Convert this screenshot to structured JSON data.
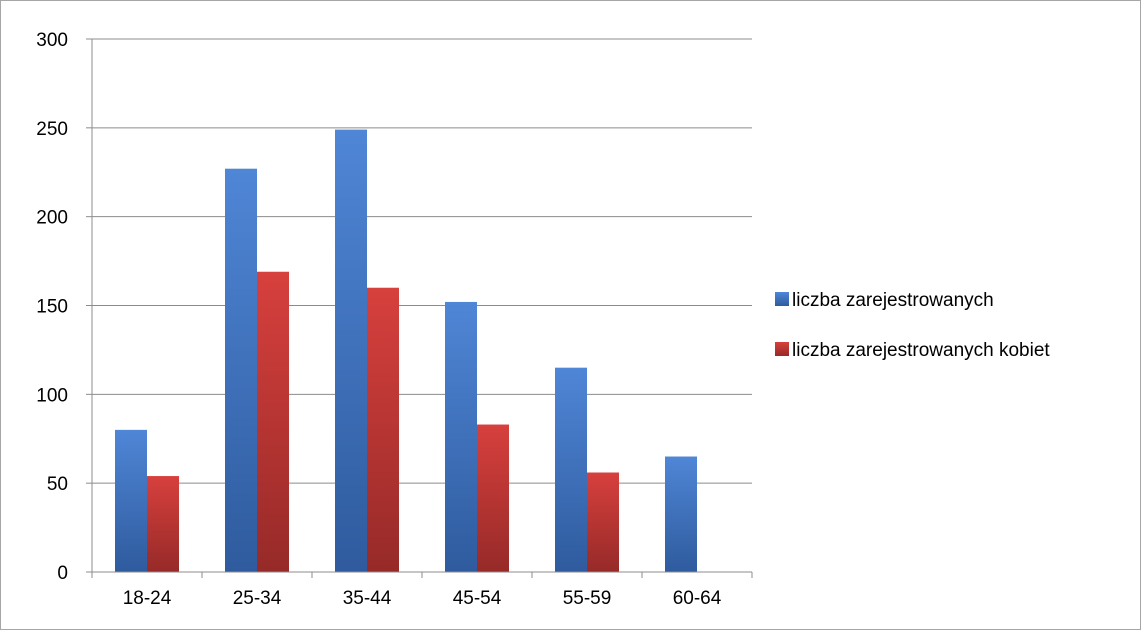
{
  "chart_data": {
    "type": "bar",
    "categories": [
      "18-24",
      "25-34",
      "35-44",
      "45-54",
      "55-59",
      "60-64"
    ],
    "series": [
      {
        "name": "liczba zarejestrowanych",
        "values": [
          80,
          227,
          249,
          152,
          115,
          65
        ],
        "color": "#4f81bd"
      },
      {
        "name": "liczba zarejestrowanych kobiet",
        "values": [
          54,
          169,
          160,
          83,
          56,
          null
        ],
        "color": "#c0504d"
      }
    ],
    "ylim": [
      0,
      300
    ],
    "yticks": [
      0,
      50,
      100,
      150,
      200,
      250,
      300
    ],
    "ytick_labels": [
      "0",
      "50",
      "100",
      "150",
      "200",
      "250",
      "300"
    ],
    "grid": true,
    "legend_position": "right"
  }
}
